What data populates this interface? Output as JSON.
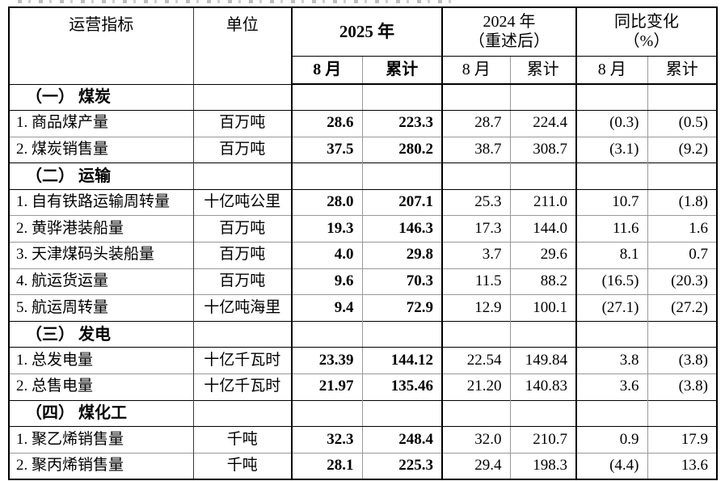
{
  "document": {
    "table": {
      "header": {
        "indicator": "运营指标",
        "unit": "单位",
        "group_2025": "2025 年",
        "group_2024_line1": "2024 年",
        "group_2024_line2": "（重述后）",
        "group_yoy_line1": "同比变化",
        "group_yoy_line2": "（%）",
        "sub_month": "8 月",
        "sub_cumulative": "累计"
      },
      "rows": [
        {
          "type": "section",
          "label": "（一） 煤炭"
        },
        {
          "type": "data",
          "label": "1. 商品煤产量",
          "unit": "百万吨",
          "y2025_m": "28.6",
          "y2025_c": "223.3",
          "y2024_m": "28.7",
          "y2024_c": "224.4",
          "yoy_m": "(0.3)",
          "yoy_c": "(0.5)"
        },
        {
          "type": "data",
          "label": "2. 煤炭销售量",
          "unit": "百万吨",
          "y2025_m": "37.5",
          "y2025_c": "280.2",
          "y2024_m": "38.7",
          "y2024_c": "308.7",
          "yoy_m": "(3.1)",
          "yoy_c": "(9.2)"
        },
        {
          "type": "section",
          "label": "（二） 运输"
        },
        {
          "type": "data",
          "label": "1. 自有铁路运输周转量",
          "unit": "十亿吨公里",
          "y2025_m": "28.0",
          "y2025_c": "207.1",
          "y2024_m": "25.3",
          "y2024_c": "211.0",
          "yoy_m": "10.7",
          "yoy_c": "(1.8)"
        },
        {
          "type": "data",
          "label": "2. 黄骅港装船量",
          "unit": "百万吨",
          "y2025_m": "19.3",
          "y2025_c": "146.3",
          "y2024_m": "17.3",
          "y2024_c": "144.0",
          "yoy_m": "11.6",
          "yoy_c": "1.6"
        },
        {
          "type": "data",
          "label": "3. 天津煤码头装船量",
          "unit": "百万吨",
          "y2025_m": "4.0",
          "y2025_c": "29.8",
          "y2024_m": "3.7",
          "y2024_c": "29.6",
          "yoy_m": "8.1",
          "yoy_c": "0.7"
        },
        {
          "type": "data",
          "label": "4. 航运货运量",
          "unit": "百万吨",
          "y2025_m": "9.6",
          "y2025_c": "70.3",
          "y2024_m": "11.5",
          "y2024_c": "88.2",
          "yoy_m": "(16.5)",
          "yoy_c": "(20.3)"
        },
        {
          "type": "data",
          "label": "5. 航运周转量",
          "unit": "十亿吨海里",
          "y2025_m": "9.4",
          "y2025_c": "72.9",
          "y2024_m": "12.9",
          "y2024_c": "100.1",
          "yoy_m": "(27.1)",
          "yoy_c": "(27.2)"
        },
        {
          "type": "section",
          "label": "（三） 发电"
        },
        {
          "type": "data",
          "label": "1. 总发电量",
          "unit": "十亿千瓦时",
          "y2025_m": "23.39",
          "y2025_c": "144.12",
          "y2024_m": "22.54",
          "y2024_c": "149.84",
          "yoy_m": "3.8",
          "yoy_c": "(3.8)"
        },
        {
          "type": "data",
          "label": "2. 总售电量",
          "unit": "十亿千瓦时",
          "y2025_m": "21.97",
          "y2025_c": "135.46",
          "y2024_m": "21.20",
          "y2024_c": "140.83",
          "yoy_m": "3.6",
          "yoy_c": "(3.8)"
        },
        {
          "type": "section",
          "label": "（四） 煤化工"
        },
        {
          "type": "data",
          "label": "1. 聚乙烯销售量",
          "unit": "千吨",
          "y2025_m": "32.3",
          "y2025_c": "248.4",
          "y2024_m": "32.0",
          "y2024_c": "210.7",
          "yoy_m": "0.9",
          "yoy_c": "17.9"
        },
        {
          "type": "data",
          "label": "2. 聚丙烯销售量",
          "unit": "千吨",
          "y2025_m": "28.1",
          "y2025_c": "225.3",
          "y2024_m": "29.4",
          "y2024_c": "198.3",
          "yoy_m": "(4.4)",
          "yoy_c": "13.6"
        }
      ]
    }
  }
}
